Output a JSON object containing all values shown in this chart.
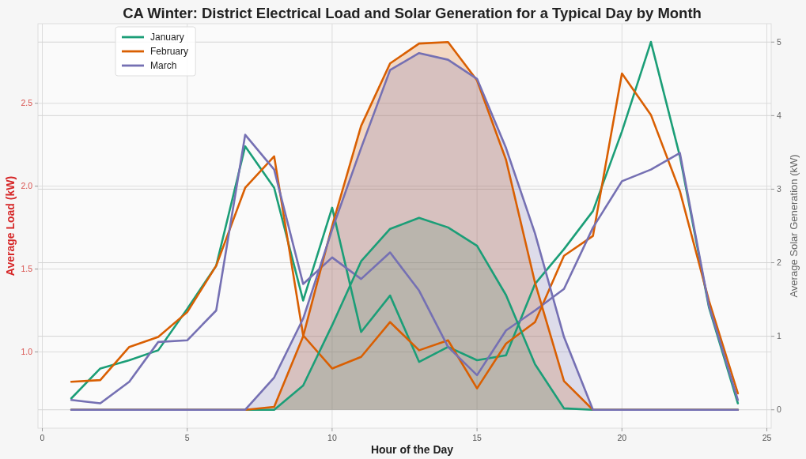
{
  "chart_data": {
    "type": "line",
    "title": "CA Winter: District Electrical Load and Solar Generation for a Typical Day by Month",
    "xlabel": "Hour of the Day",
    "ylabel": "Average Load (kW)",
    "y2label": "Average Solar Generation (kW)",
    "x": [
      1,
      2,
      3,
      4,
      5,
      6,
      7,
      8,
      9,
      10,
      11,
      12,
      13,
      14,
      15,
      16,
      17,
      18,
      19,
      20,
      21,
      22,
      23,
      24
    ],
    "xlim": [
      -0.15,
      25.15
    ],
    "xticks": [
      0,
      5,
      10,
      15,
      20,
      25
    ],
    "ylim": [
      0.54,
      2.98
    ],
    "yticks": [
      {
        "value": 1,
        "label": "1.0"
      },
      1.5,
      {
        "value": 2,
        "label": "2.0"
      },
      2.5
    ],
    "y2lim": [
      -0.25,
      5.25
    ],
    "y2ticks": [
      0,
      1,
      2,
      3,
      4,
      5
    ],
    "grid": true,
    "legend": "top left",
    "series": [
      {
        "name": "January",
        "color": "#1b9e77",
        "values": [
          0.72,
          0.9,
          0.95,
          1.01,
          1.26,
          1.52,
          2.24,
          1.99,
          1.31,
          1.87,
          1.12,
          1.34,
          0.94,
          1.03,
          0.95,
          0.98,
          1.41,
          1.62,
          1.85,
          2.33,
          2.87,
          2.18,
          1.27,
          0.69
        ]
      },
      {
        "name": "February",
        "color": "#d95f02",
        "values": [
          0.82,
          0.83,
          1.03,
          1.09,
          1.24,
          1.52,
          1.99,
          2.18,
          1.1,
          0.9,
          0.97,
          1.18,
          1.01,
          1.07,
          0.78,
          1.05,
          1.18,
          1.58,
          1.7,
          2.68,
          2.43,
          1.97,
          1.31,
          0.75
        ]
      },
      {
        "name": "March",
        "color": "#7570b3",
        "values": [
          0.71,
          0.69,
          0.82,
          1.06,
          1.07,
          1.25,
          2.31,
          2.1,
          1.41,
          1.57,
          1.44,
          1.6,
          1.37,
          1.03,
          0.86,
          1.13,
          1.25,
          1.38,
          1.75,
          2.03,
          2.1,
          2.2,
          1.28,
          0.71
        ]
      },
      {
        "type": "area",
        "axis": "y2",
        "color": "#1b9e77",
        "values": [
          0,
          0,
          0,
          0,
          0,
          0,
          0,
          0,
          0.33,
          1.15,
          2.02,
          2.46,
          2.61,
          2.48,
          2.23,
          1.56,
          0.62,
          0.02,
          0,
          0,
          0,
          0,
          0,
          0
        ]
      },
      {
        "type": "area",
        "axis": "y2",
        "color": "#d95f02",
        "values": [
          0,
          0,
          0,
          0,
          0,
          0,
          0,
          0.04,
          1.0,
          2.5,
          3.86,
          4.71,
          4.98,
          5.0,
          4.48,
          3.4,
          1.73,
          0.39,
          0,
          0,
          0,
          0,
          0,
          0
        ]
      },
      {
        "type": "area",
        "axis": "y2",
        "color": "#7570b3",
        "values": [
          0,
          0,
          0,
          0,
          0,
          0,
          0,
          0.44,
          1.24,
          2.45,
          3.56,
          4.62,
          4.85,
          4.76,
          4.5,
          3.56,
          2.4,
          0.99,
          0,
          0,
          0,
          0,
          0,
          0
        ]
      }
    ]
  }
}
